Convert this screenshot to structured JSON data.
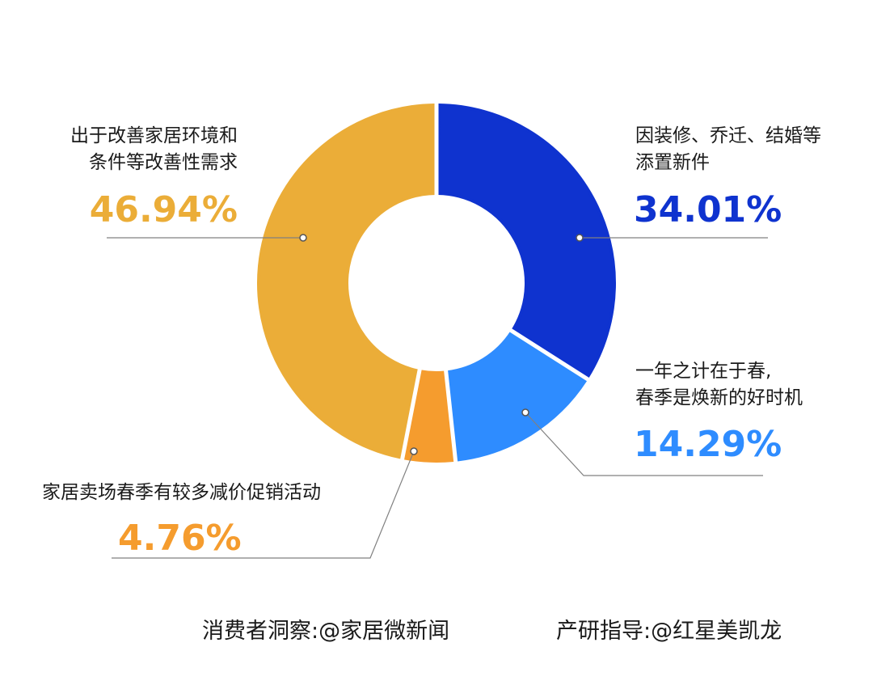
{
  "chart_data": {
    "type": "pie",
    "style": "donut",
    "slices": [
      {
        "label_lines": [
          "因装修、乔迁、结婚等",
          "添置新件"
        ],
        "value": 34.01,
        "display": "34.01%",
        "color": "#0f33cf"
      },
      {
        "label_lines": [
          "一年之计在于春,",
          "春季是焕新的好时机"
        ],
        "value": 14.29,
        "display": "14.29%",
        "color": "#2e8cff"
      },
      {
        "label_lines": [
          "家居卖场春季有较多减价促销活动"
        ],
        "value": 4.76,
        "display": "4.76%",
        "color": "#f59c2e"
      },
      {
        "label_lines": [
          "出于改善家居环境和",
          "条件等改善性需求"
        ],
        "value": 46.94,
        "display": "46.94%",
        "color": "#ebad38"
      }
    ]
  },
  "footer": {
    "left": "消费者洞察:@家居微新闻",
    "right": "产研指导:@红星美凯龙"
  }
}
